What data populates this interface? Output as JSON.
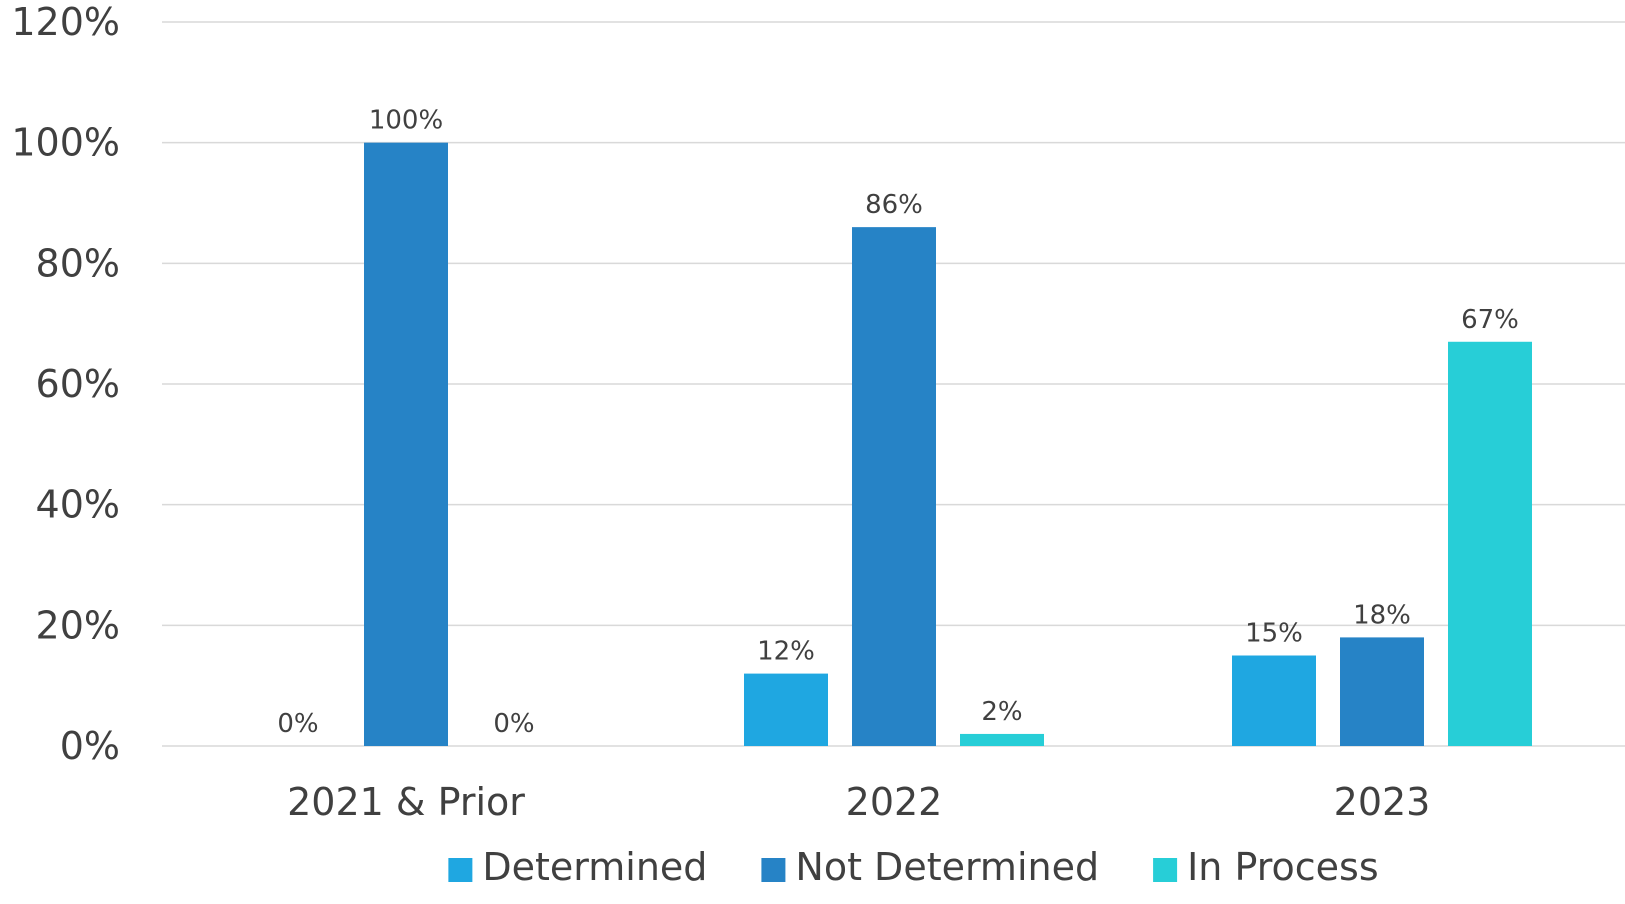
{
  "chart_data": {
    "type": "bar",
    "categories": [
      "2021 & Prior",
      "2022",
      "2023"
    ],
    "series": [
      {
        "name": "Determined",
        "values": [
          0,
          12,
          15
        ],
        "labels": [
          "0%",
          "12%",
          "15%"
        ],
        "color": "#1fa7e1"
      },
      {
        "name": "Not Determined",
        "values": [
          100,
          86,
          18
        ],
        "labels": [
          "100%",
          "86%",
          "18%"
        ],
        "color": "#2683c6"
      },
      {
        "name": "In Process",
        "values": [
          0,
          2,
          67
        ],
        "labels": [
          "0%",
          "2%",
          "67%"
        ],
        "color": "#27ced7"
      }
    ],
    "yticks": [
      0,
      20,
      40,
      60,
      80,
      100,
      120
    ],
    "ytick_labels": [
      "0%",
      "20%",
      "40%",
      "60%",
      "80%",
      "100%",
      "120%"
    ],
    "ylim": [
      0,
      120
    ],
    "title": "",
    "xlabel": "",
    "ylabel": "",
    "grid": true,
    "legend_position": "bottom"
  }
}
